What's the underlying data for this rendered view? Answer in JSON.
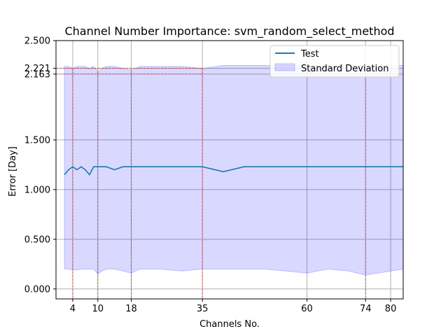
{
  "chart_data": {
    "type": "line",
    "title": "Channel Number Importance: svm_random_select_method",
    "xlabel": "Channels No.",
    "ylabel": "Error [Day]",
    "xlim": [
      0,
      83
    ],
    "ylim": [
      -0.1,
      2.5
    ],
    "xticks": [
      4,
      10,
      18,
      35,
      60,
      74,
      80
    ],
    "yticks": [
      0.0,
      0.5,
      1.0,
      1.5,
      2.163,
      2.221,
      2.5
    ],
    "ytick_labels": [
      "0.000",
      "0.500",
      "1.000",
      "1.500",
      "2.163",
      "2.221",
      "2.500"
    ],
    "grid": true,
    "legend_position": "top-right",
    "series": [
      {
        "name": "Test",
        "color": "#1f77b4",
        "x": [
          2,
          3,
          4,
          5,
          6,
          7,
          8,
          9,
          10,
          12,
          14,
          16,
          18,
          20,
          25,
          30,
          35,
          40,
          45,
          50,
          55,
          60,
          65,
          70,
          74,
          80,
          83
        ],
        "y": [
          1.15,
          1.2,
          1.23,
          1.2,
          1.23,
          1.2,
          1.15,
          1.23,
          1.23,
          1.23,
          1.2,
          1.23,
          1.23,
          1.23,
          1.23,
          1.23,
          1.23,
          1.18,
          1.23,
          1.23,
          1.23,
          1.23,
          1.23,
          1.23,
          1.23,
          1.23,
          1.23
        ]
      }
    ],
    "bands": [
      {
        "name": "Standard Deviation",
        "color": "#0000ff",
        "opacity": 0.15,
        "x": [
          2,
          3,
          4,
          5,
          6,
          7,
          8,
          9,
          10,
          11,
          12,
          14,
          16,
          18,
          20,
          25,
          30,
          35,
          40,
          45,
          50,
          55,
          60,
          65,
          70,
          74,
          80,
          83
        ],
        "upper": [
          2.24,
          2.24,
          2.22,
          2.24,
          2.24,
          2.24,
          2.22,
          2.24,
          2.18,
          2.22,
          2.24,
          2.24,
          2.22,
          2.2,
          2.24,
          2.24,
          2.24,
          2.22,
          2.25,
          2.25,
          2.25,
          2.25,
          2.25,
          2.25,
          2.25,
          2.25,
          2.25,
          2.25
        ],
        "lower": [
          0.2,
          0.2,
          0.19,
          0.19,
          0.2,
          0.2,
          0.2,
          0.2,
          0.15,
          0.18,
          0.2,
          0.2,
          0.18,
          0.16,
          0.2,
          0.2,
          0.18,
          0.2,
          0.2,
          0.2,
          0.2,
          0.18,
          0.16,
          0.2,
          0.18,
          0.14,
          0.18,
          0.2
        ]
      }
    ],
    "reference_lines": {
      "color": "#d62728",
      "vertical_x": [
        4,
        10,
        18,
        35,
        74
      ],
      "horizontal_y": [
        2.163,
        2.221
      ]
    }
  }
}
